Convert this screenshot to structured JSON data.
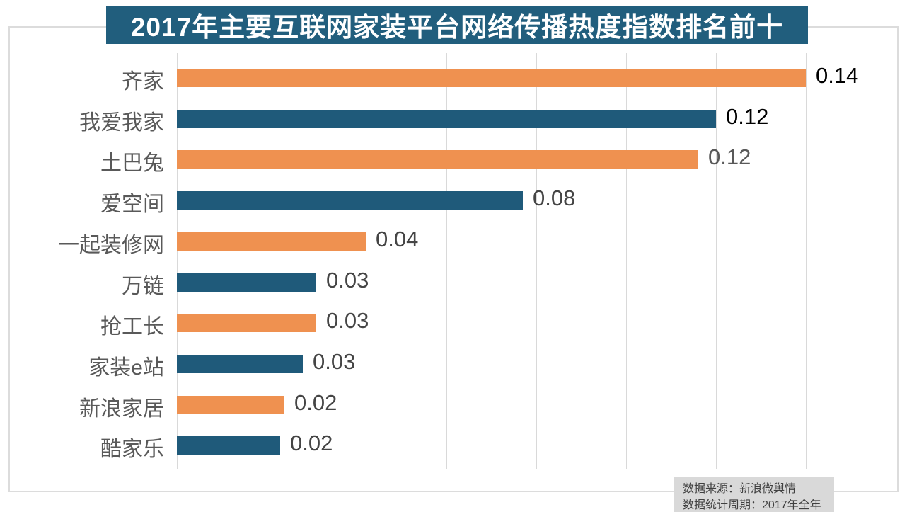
{
  "chart_data": {
    "type": "bar",
    "orientation": "horizontal",
    "title": "2017年主要互联网家装平台网络传播热度指数排名前十",
    "categories": [
      "齐家",
      "我爱我家",
      "土巴兔",
      "爱空间",
      "一起装修网",
      "万链",
      "抢工长",
      "家装e站",
      "新浪家居",
      "酷家乐"
    ],
    "value_labels": [
      "0.14",
      "0.12",
      "0.12",
      "0.08",
      "0.04",
      "0.03",
      "0.03",
      "0.03",
      "0.02",
      "0.02"
    ],
    "bar_lengths_estimated": [
      0.14,
      0.12,
      0.116,
      0.077,
      0.042,
      0.031,
      0.031,
      0.028,
      0.024,
      0.023
    ],
    "xlim": [
      0,
      0.16
    ],
    "grid_step": 0.02,
    "grid": true,
    "legend": "none",
    "bar_color_odd_rows": "#EF9150",
    "bar_color_even_rows": "#1F5A7A",
    "value_label_colors": [
      "#000000",
      "#000000",
      "#595959",
      "#454545",
      "#454545",
      "#454545",
      "#454545",
      "#454545",
      "#454545",
      "#454545"
    ],
    "category_label_color": "#595959",
    "title_bg_color": "#215E7D",
    "title_text_color": "#ffffff"
  },
  "footer": {
    "source": "数据来源：新浪微舆情",
    "period": "数据统计周期：2017年全年"
  }
}
